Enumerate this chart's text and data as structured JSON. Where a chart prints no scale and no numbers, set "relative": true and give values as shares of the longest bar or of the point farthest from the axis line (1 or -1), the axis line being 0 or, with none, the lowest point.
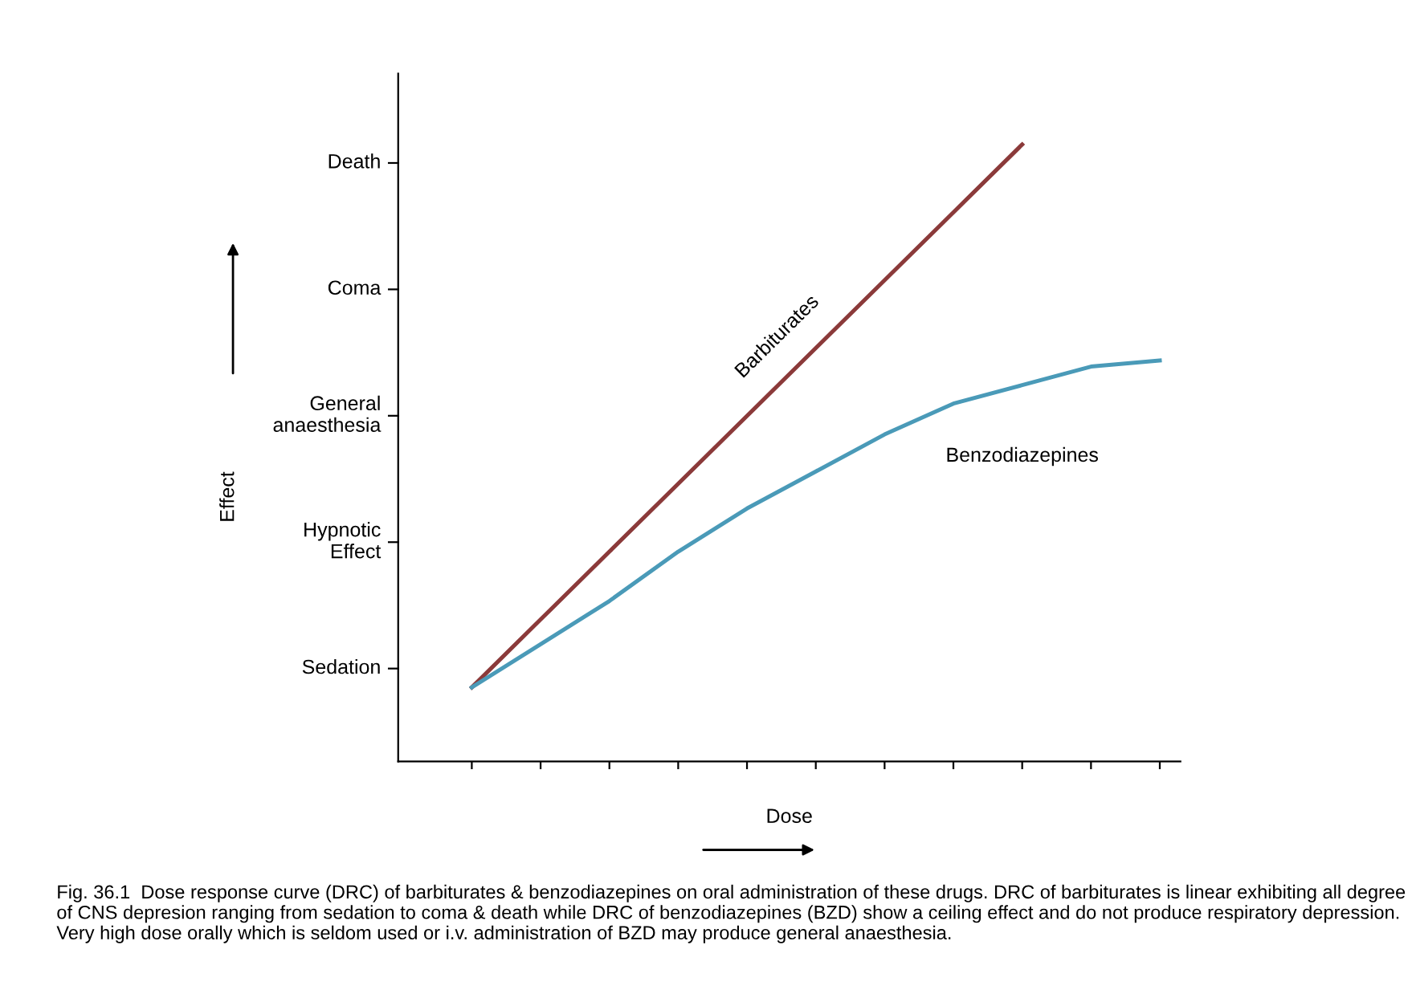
{
  "chart_data": {
    "type": "line",
    "xlabel": "Dose",
    "categories": [
      null,
      null,
      null,
      null,
      null,
      null,
      null,
      null,
      null,
      null,
      null
    ],
    "relative": true,
    "grid": false,
    "legend": false,
    "series": [
      {
        "name": "Barbiturates",
        "color": "#8b3a3a",
        "values": [
          0.12,
          0.23,
          0.34,
          0.45,
          0.56,
          0.67,
          0.78,
          0.89,
          1,
          null,
          null
        ]
      },
      {
        "name": "Benzodiazepines",
        "color": "#4a9ab8",
        "values": [
          0.12,
          0.19,
          0.26,
          0.34,
          0.41,
          0.47,
          0.53,
          0.58,
          0.61,
          0.64,
          0.65
        ]
      }
    ],
    "annotations": [
      "Sedation",
      "Hypnotic\nEffect",
      "General\nanaesthesia",
      "Coma",
      "Death",
      "Effect",
      "Fig. 36.1  Dose response curve (DRC) of barbiturates & benzodiazepines on oral administration of these drugs. DRC of barbiturates is linear exhibiting all degree of CNS depresion ranging from sedation to coma & death while DRC of benzodiazepines (BZD) show a ceiling effect and do not produce respiratory depression. Very high dose orally which is seldom used or i.v. administration of BZD may produce general anaesthesia."
    ]
  }
}
